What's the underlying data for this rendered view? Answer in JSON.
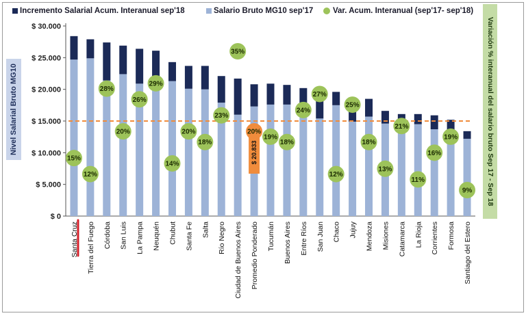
{
  "legend": {
    "increment_label": "Incremento Salarial Acum. Interanual sep'18",
    "salary_label": "Salario Bruto MG10 sep'17",
    "variation_label": "Var. Acum. Interanual (sep'17- sep'18)"
  },
  "axes": {
    "left_title": "Nivel Salarial Bruto MG10",
    "right_title": "Variación % interanual del salario bruto Sep 17 - Sep 18"
  },
  "callout_label": "$ 20.833",
  "colors": {
    "salary": "#9db3d7",
    "increment": "#1b2a57",
    "variation": "#9dc35a",
    "highlight": "#f08c3c",
    "average_line": "#f08c3c",
    "underline": "#d4202a"
  },
  "chart_data": {
    "type": "bar",
    "stacked": true,
    "categories": [
      "Santa Cruz",
      "Tierra del Fuego",
      "Córdoba",
      "San Luis",
      "La Pampa",
      "Neuquén",
      "Chubut",
      "Santa Fe",
      "Salta",
      "Río Negro",
      "Ciudad de Buenos Aires",
      "Promedio Ponderado",
      "Tucumán",
      "Buenos Aires",
      "Entre Ríos",
      "San Juan",
      "Chaco",
      "Jujuy",
      "Mendoza",
      "Misiones",
      "Catamarca",
      "La Rioja",
      "Corrientes",
      "Formosa",
      "Santiago del Estero"
    ],
    "series": [
      {
        "name": "Salario Bruto MG10 sep'17",
        "values": [
          24700,
          24900,
          21400,
          22400,
          20900,
          20100,
          21300,
          20100,
          20000,
          17900,
          16000,
          17300,
          17600,
          17600,
          15900,
          15400,
          17500,
          14900,
          15700,
          14600,
          13300,
          14500,
          13700,
          12800,
          12200
        ]
      },
      {
        "name": "Incremento Salarial Acum. Interanual sep'18",
        "values": [
          3700,
          3000,
          6000,
          4500,
          5500,
          6000,
          3000,
          3600,
          3700,
          4200,
          5700,
          3500,
          3300,
          3100,
          4300,
          4200,
          2100,
          3700,
          2800,
          2000,
          2800,
          1600,
          2200,
          2400,
          1200
        ]
      },
      {
        "name": "Var. Acum. Interanual (sep'17- sep'18)",
        "axis": "secondary",
        "labels": [
          "15%",
          "12%",
          "28%",
          "20%",
          "26%",
          "29%",
          "14%",
          "20%",
          "18%",
          "23%",
          "35%",
          "20%",
          "19%",
          "18%",
          "24%",
          "27%",
          "12%",
          "25%",
          "18%",
          "13%",
          "21%",
          "11%",
          "16%",
          "19%",
          "9%"
        ],
        "values": [
          15,
          12,
          28,
          20,
          26,
          29,
          14,
          20,
          18,
          23,
          35,
          20,
          19,
          18,
          24,
          27,
          12,
          25,
          18,
          13,
          21,
          11,
          16,
          19,
          9
        ]
      }
    ],
    "reference_line": {
      "value": 15000,
      "style": "dashed"
    },
    "highlight_category": "Promedio Ponderado",
    "underlined_category": "Santa Cruz",
    "y_ticks": [
      "$ 0",
      "$ 5.000",
      "$ 10.000",
      "$ 15.000",
      "$ 20.000",
      "$ 25.000",
      "$ 30.000"
    ],
    "ylim": [
      0,
      30000
    ],
    "ylabel": "Nivel Salarial Bruto MG10",
    "y2label": "Variación % interanual del salario bruto Sep 17 - Sep 18",
    "legend_position": "top",
    "grid": false
  }
}
